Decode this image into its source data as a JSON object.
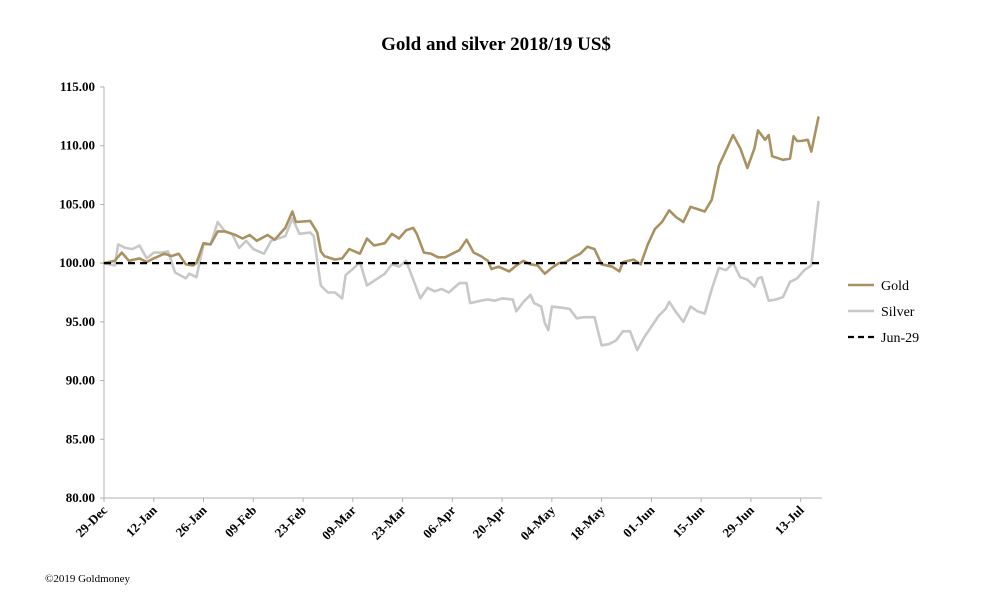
{
  "chart_data": {
    "type": "line",
    "title": "Gold and silver 2018/19  US$",
    "ylim": [
      80,
      115
    ],
    "yticks": [
      "80.00",
      "85.00",
      "90.00",
      "95.00",
      "100.00",
      "105.00",
      "110.00",
      "115.00"
    ],
    "xlim": [
      "2018-12-29",
      "2019-07-19"
    ],
    "xticks": [
      {
        "date": "2018-12-29",
        "label": "29-Dec"
      },
      {
        "date": "2019-01-12",
        "label": "12-Jan"
      },
      {
        "date": "2019-01-26",
        "label": "26-Jan"
      },
      {
        "date": "2019-02-09",
        "label": "09-Feb"
      },
      {
        "date": "2019-02-23",
        "label": "23-Feb"
      },
      {
        "date": "2019-03-09",
        "label": "09-Mar"
      },
      {
        "date": "2019-03-23",
        "label": "23-Mar"
      },
      {
        "date": "2019-04-06",
        "label": "06-Apr"
      },
      {
        "date": "2019-04-20",
        "label": "20-Apr"
      },
      {
        "date": "2019-05-04",
        "label": "04-May"
      },
      {
        "date": "2019-05-18",
        "label": "18-May"
      },
      {
        "date": "2019-06-01",
        "label": "01-Jun"
      },
      {
        "date": "2019-06-15",
        "label": "15-Jun"
      },
      {
        "date": "2019-06-29",
        "label": "29-Jun"
      },
      {
        "date": "2019-07-13",
        "label": "13-Jul"
      }
    ],
    "legend_position": "right",
    "grid": false,
    "series": [
      {
        "name": "Gold",
        "color": "#a99262",
        "style": "solid",
        "points": [
          [
            "2018-12-29",
            100.0
          ],
          [
            "2019-01-01",
            100.2
          ],
          [
            "2019-01-03",
            100.9
          ],
          [
            "2019-01-05",
            100.2
          ],
          [
            "2019-01-08",
            100.4
          ],
          [
            "2019-01-10",
            100.1
          ],
          [
            "2019-01-12",
            100.4
          ],
          [
            "2019-01-15",
            100.8
          ],
          [
            "2019-01-17",
            100.6
          ],
          [
            "2019-01-19",
            100.8
          ],
          [
            "2019-01-21",
            99.9
          ],
          [
            "2019-01-23",
            99.8
          ],
          [
            "2019-01-24",
            100.0
          ],
          [
            "2019-01-26",
            101.7
          ],
          [
            "2019-01-28",
            101.6
          ],
          [
            "2019-01-30",
            102.7
          ],
          [
            "2019-02-01",
            102.7
          ],
          [
            "2019-02-04",
            102.4
          ],
          [
            "2019-02-06",
            102.1
          ],
          [
            "2019-02-08",
            102.4
          ],
          [
            "2019-02-10",
            101.9
          ],
          [
            "2019-02-13",
            102.4
          ],
          [
            "2019-02-15",
            102.0
          ],
          [
            "2019-02-18",
            103.0
          ],
          [
            "2019-02-20",
            104.4
          ],
          [
            "2019-02-21",
            103.5
          ],
          [
            "2019-02-25",
            103.6
          ],
          [
            "2019-02-27",
            102.6
          ],
          [
            "2019-02-28",
            101.0
          ],
          [
            "2019-03-01",
            100.6
          ],
          [
            "2019-03-04",
            100.3
          ],
          [
            "2019-03-06",
            100.4
          ],
          [
            "2019-03-08",
            101.2
          ],
          [
            "2019-03-11",
            100.8
          ],
          [
            "2019-03-13",
            102.1
          ],
          [
            "2019-03-15",
            101.5
          ],
          [
            "2019-03-18",
            101.7
          ],
          [
            "2019-03-20",
            102.5
          ],
          [
            "2019-03-22",
            102.1
          ],
          [
            "2019-03-24",
            102.8
          ],
          [
            "2019-03-26",
            103.0
          ],
          [
            "2019-03-27",
            102.5
          ],
          [
            "2019-03-29",
            100.9
          ],
          [
            "2019-03-31",
            100.8
          ],
          [
            "2019-04-02",
            100.5
          ],
          [
            "2019-04-04",
            100.5
          ],
          [
            "2019-04-06",
            100.8
          ],
          [
            "2019-04-08",
            101.1
          ],
          [
            "2019-04-10",
            102.0
          ],
          [
            "2019-04-12",
            100.9
          ],
          [
            "2019-04-14",
            100.6
          ],
          [
            "2019-04-16",
            100.2
          ],
          [
            "2019-04-17",
            99.5
          ],
          [
            "2019-04-19",
            99.7
          ],
          [
            "2019-04-22",
            99.3
          ],
          [
            "2019-04-24",
            99.8
          ],
          [
            "2019-04-26",
            100.2
          ],
          [
            "2019-04-28",
            99.9
          ],
          [
            "2019-04-30",
            99.8
          ],
          [
            "2019-05-02",
            99.1
          ],
          [
            "2019-05-04",
            99.6
          ],
          [
            "2019-05-06",
            100.0
          ],
          [
            "2019-05-08",
            100.1
          ],
          [
            "2019-05-10",
            100.5
          ],
          [
            "2019-05-12",
            100.8
          ],
          [
            "2019-05-14",
            101.4
          ],
          [
            "2019-05-16",
            101.2
          ],
          [
            "2019-05-18",
            99.9
          ],
          [
            "2019-05-21",
            99.7
          ],
          [
            "2019-05-23",
            99.3
          ],
          [
            "2019-05-24",
            100.1
          ],
          [
            "2019-05-27",
            100.3
          ],
          [
            "2019-05-29",
            99.9
          ],
          [
            "2019-05-31",
            101.6
          ],
          [
            "2019-06-02",
            102.9
          ],
          [
            "2019-06-04",
            103.5
          ],
          [
            "2019-06-06",
            104.5
          ],
          [
            "2019-06-08",
            103.9
          ],
          [
            "2019-06-10",
            103.5
          ],
          [
            "2019-06-12",
            104.8
          ],
          [
            "2019-06-14",
            104.6
          ],
          [
            "2019-06-16",
            104.4
          ],
          [
            "2019-06-18",
            105.4
          ],
          [
            "2019-06-20",
            108.3
          ],
          [
            "2019-06-22",
            109.6
          ],
          [
            "2019-06-24",
            110.9
          ],
          [
            "2019-06-26",
            109.8
          ],
          [
            "2019-06-28",
            108.1
          ],
          [
            "2019-06-30",
            109.8
          ],
          [
            "2019-07-01",
            111.3
          ],
          [
            "2019-07-03",
            110.5
          ],
          [
            "2019-07-04",
            110.9
          ],
          [
            "2019-07-05",
            109.1
          ],
          [
            "2019-07-08",
            108.8
          ],
          [
            "2019-07-10",
            108.9
          ],
          [
            "2019-07-11",
            110.8
          ],
          [
            "2019-07-12",
            110.4
          ],
          [
            "2019-07-13",
            110.4
          ],
          [
            "2019-07-15",
            110.5
          ],
          [
            "2019-07-16",
            109.5
          ],
          [
            "2019-07-18",
            112.4
          ]
        ]
      },
      {
        "name": "Silver",
        "color": "#c8c8c8",
        "style": "solid",
        "points": [
          [
            "2018-12-29",
            100.0
          ],
          [
            "2019-01-01",
            99.8
          ],
          [
            "2019-01-02",
            101.6
          ],
          [
            "2019-01-04",
            101.3
          ],
          [
            "2019-01-06",
            101.2
          ],
          [
            "2019-01-08",
            101.5
          ],
          [
            "2019-01-10",
            100.4
          ],
          [
            "2019-01-12",
            100.9
          ],
          [
            "2019-01-14",
            100.9
          ],
          [
            "2019-01-16",
            101.0
          ],
          [
            "2019-01-18",
            99.2
          ],
          [
            "2019-01-21",
            98.7
          ],
          [
            "2019-01-22",
            99.1
          ],
          [
            "2019-01-24",
            98.8
          ],
          [
            "2019-01-26",
            101.6
          ],
          [
            "2019-01-28",
            101.6
          ],
          [
            "2019-01-30",
            103.5
          ],
          [
            "2019-02-01",
            102.7
          ],
          [
            "2019-02-03",
            102.5
          ],
          [
            "2019-02-05",
            101.3
          ],
          [
            "2019-02-07",
            101.9
          ],
          [
            "2019-02-09",
            101.2
          ],
          [
            "2019-02-12",
            100.8
          ],
          [
            "2019-02-14",
            101.9
          ],
          [
            "2019-02-16",
            102.1
          ],
          [
            "2019-02-18",
            102.3
          ],
          [
            "2019-02-20",
            103.8
          ],
          [
            "2019-02-22",
            102.5
          ],
          [
            "2019-02-25",
            102.6
          ],
          [
            "2019-02-26",
            102.3
          ],
          [
            "2019-02-28",
            98.1
          ],
          [
            "2019-03-02",
            97.5
          ],
          [
            "2019-03-04",
            97.5
          ],
          [
            "2019-03-06",
            97.0
          ],
          [
            "2019-03-07",
            99.0
          ],
          [
            "2019-03-09",
            99.5
          ],
          [
            "2019-03-11",
            100.1
          ],
          [
            "2019-03-13",
            98.1
          ],
          [
            "2019-03-15",
            98.5
          ],
          [
            "2019-03-18",
            99.1
          ],
          [
            "2019-03-20",
            99.9
          ],
          [
            "2019-03-22",
            99.7
          ],
          [
            "2019-03-24",
            100.2
          ],
          [
            "2019-03-26",
            98.6
          ],
          [
            "2019-03-28",
            97.0
          ],
          [
            "2019-03-30",
            97.9
          ],
          [
            "2019-04-01",
            97.6
          ],
          [
            "2019-04-03",
            97.8
          ],
          [
            "2019-04-05",
            97.5
          ],
          [
            "2019-04-08",
            98.3
          ],
          [
            "2019-04-10",
            98.3
          ],
          [
            "2019-04-11",
            96.6
          ],
          [
            "2019-04-14",
            96.8
          ],
          [
            "2019-04-16",
            96.9
          ],
          [
            "2019-04-18",
            96.8
          ],
          [
            "2019-04-20",
            97.0
          ],
          [
            "2019-04-23",
            96.9
          ],
          [
            "2019-04-24",
            95.9
          ],
          [
            "2019-04-26",
            96.7
          ],
          [
            "2019-04-28",
            97.3
          ],
          [
            "2019-04-29",
            96.6
          ],
          [
            "2019-05-01",
            96.3
          ],
          [
            "2019-05-02",
            94.9
          ],
          [
            "2019-05-03",
            94.3
          ],
          [
            "2019-05-04",
            96.3
          ],
          [
            "2019-05-07",
            96.2
          ],
          [
            "2019-05-09",
            96.1
          ],
          [
            "2019-05-11",
            95.3
          ],
          [
            "2019-05-13",
            95.4
          ],
          [
            "2019-05-16",
            95.4
          ],
          [
            "2019-05-18",
            93.0
          ],
          [
            "2019-05-20",
            93.1
          ],
          [
            "2019-05-22",
            93.4
          ],
          [
            "2019-05-24",
            94.2
          ],
          [
            "2019-05-26",
            94.2
          ],
          [
            "2019-05-28",
            92.6
          ],
          [
            "2019-05-30",
            93.7
          ],
          [
            "2019-06-01",
            94.6
          ],
          [
            "2019-06-03",
            95.5
          ],
          [
            "2019-06-05",
            96.1
          ],
          [
            "2019-06-06",
            96.7
          ],
          [
            "2019-06-08",
            95.8
          ],
          [
            "2019-06-10",
            95.0
          ],
          [
            "2019-06-12",
            96.3
          ],
          [
            "2019-06-14",
            95.9
          ],
          [
            "2019-06-16",
            95.7
          ],
          [
            "2019-06-18",
            97.8
          ],
          [
            "2019-06-20",
            99.6
          ],
          [
            "2019-06-22",
            99.4
          ],
          [
            "2019-06-24",
            100.0
          ],
          [
            "2019-06-26",
            98.8
          ],
          [
            "2019-06-28",
            98.6
          ],
          [
            "2019-06-30",
            98.0
          ],
          [
            "2019-07-01",
            98.7
          ],
          [
            "2019-07-02",
            98.8
          ],
          [
            "2019-07-04",
            96.8
          ],
          [
            "2019-07-06",
            96.9
          ],
          [
            "2019-07-08",
            97.1
          ],
          [
            "2019-07-10",
            98.4
          ],
          [
            "2019-07-12",
            98.7
          ],
          [
            "2019-07-14",
            99.4
          ],
          [
            "2019-07-16",
            99.8
          ],
          [
            "2019-07-18",
            105.2
          ]
        ]
      },
      {
        "name": "Jun-29",
        "color": "#000000",
        "style": "dashed",
        "points": [
          [
            "2018-12-29",
            100.0
          ],
          [
            "2019-07-19",
            100.0
          ]
        ]
      }
    ]
  },
  "footer": {
    "credit": "©2019 Goldmoney"
  }
}
